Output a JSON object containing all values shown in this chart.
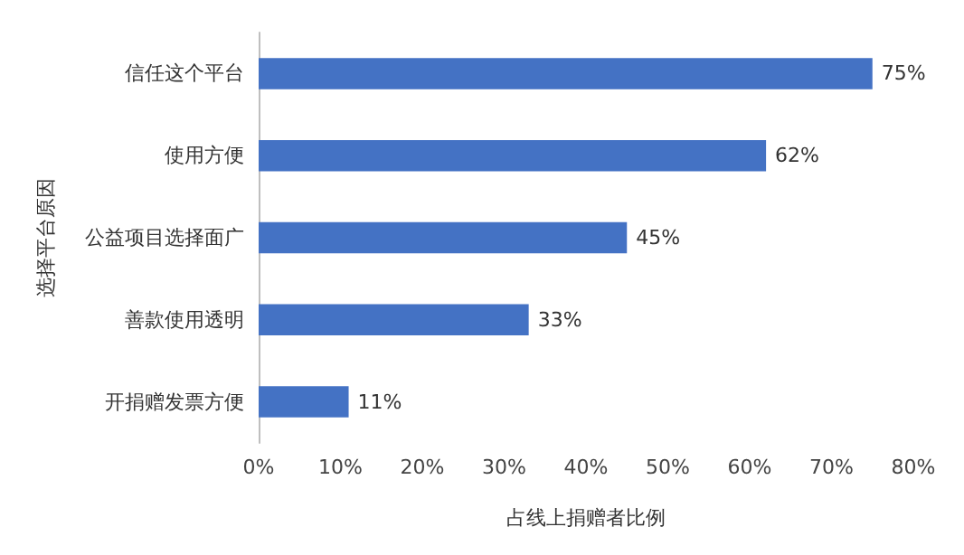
{
  "chart_data": {
    "type": "bar",
    "orientation": "horizontal",
    "categories": [
      "信任这个平台",
      "使用方便",
      "公益项目选择面广",
      "善款使用透明",
      "开捐赠发票方便"
    ],
    "values": [
      75,
      62,
      45,
      33,
      11
    ],
    "value_labels": [
      "75%",
      "62%",
      "45%",
      "33%",
      "11%"
    ],
    "color": "#4472c4",
    "xlabel": "占线上捐赠者比例",
    "ylabel": "选择平台原因",
    "xlim": [
      0,
      80
    ],
    "xticks": [
      {
        "value": 0,
        "label": "0%"
      },
      {
        "value": 10,
        "label": "10%"
      },
      {
        "value": 20,
        "label": "20%"
      },
      {
        "value": 30,
        "label": "30%"
      },
      {
        "value": 40,
        "label": "40%"
      },
      {
        "value": 50,
        "label": "50%"
      },
      {
        "value": 60,
        "label": "60%"
      },
      {
        "value": 70,
        "label": "70%"
      },
      {
        "value": 80,
        "label": "80%"
      }
    ],
    "grid": false
  }
}
